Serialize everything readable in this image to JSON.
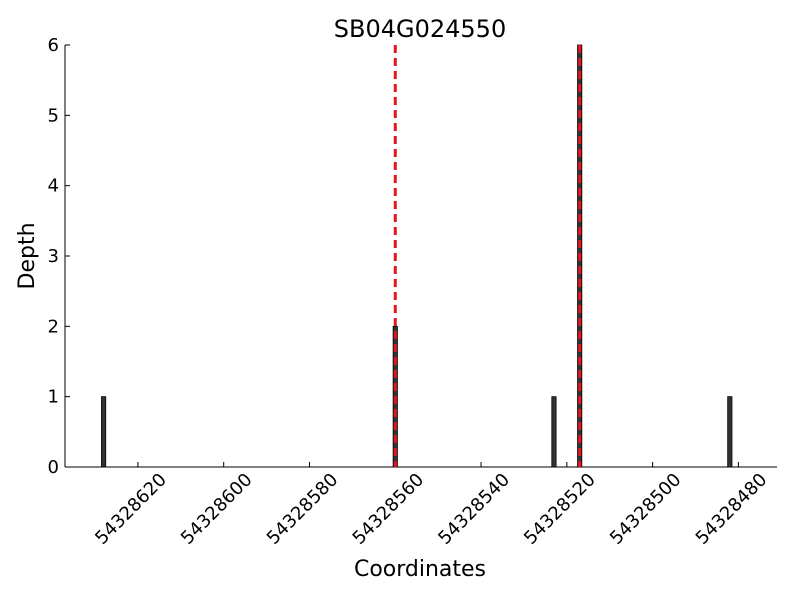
{
  "chart_data": {
    "type": "bar",
    "title": "SB04G024550",
    "x_label": "Coordinates",
    "y_label": "Depth",
    "x": [
      54328628,
      54328560,
      54328523,
      54328517,
      54328482
    ],
    "values": [
      1,
      2,
      1,
      6,
      1
    ],
    "color": "#333333",
    "vlines": [
      54328560,
      54328517
    ],
    "vline_color": "#e8141c",
    "xlim": [
      54328637,
      54328471
    ],
    "xticks": [
      54328620,
      54328600,
      54328580,
      54328560,
      54328540,
      54328520,
      54328500,
      54328480
    ],
    "ylim": [
      0,
      6
    ],
    "yticks": [
      0,
      1,
      2,
      3,
      4,
      5,
      6
    ],
    "grid": false
  }
}
